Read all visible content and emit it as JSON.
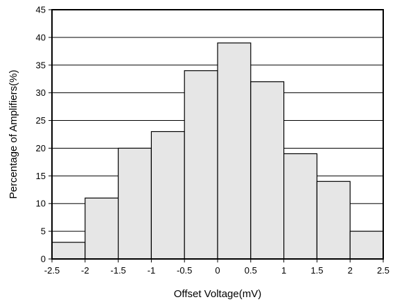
{
  "chart_data": {
    "type": "bar",
    "title": "",
    "xlabel": "Offset Voltage(mV)",
    "ylabel": "Percentage of Amplifiers(%)",
    "bin_edges": [
      -2.5,
      -2.0,
      -1.5,
      -1.0,
      -0.5,
      0.0,
      0.5,
      1.0,
      1.5,
      2.0,
      2.5
    ],
    "values": [
      3,
      11,
      20,
      23,
      34,
      39,
      32,
      19,
      14,
      5
    ],
    "xlim": [
      -2.5,
      2.5
    ],
    "ylim": [
      0,
      45
    ],
    "x_ticks": [
      -2.5,
      -2,
      -1.5,
      -1,
      -0.5,
      0,
      0.5,
      1,
      1.5,
      2,
      2.5
    ],
    "x_tick_labels": [
      "-2.5",
      "-2",
      "-1.5",
      "-1",
      "-0.5",
      "0",
      "0.5",
      "1",
      "1.5",
      "2",
      "2.5"
    ],
    "y_ticks": [
      0,
      5,
      10,
      15,
      20,
      25,
      30,
      35,
      40,
      45
    ],
    "y_tick_labels": [
      "0",
      "5",
      "10",
      "15",
      "20",
      "25",
      "30",
      "35",
      "40",
      "45"
    ],
    "grid": "horizontal",
    "bar_color": "#e6e6e6",
    "edge_color": "#000000"
  }
}
